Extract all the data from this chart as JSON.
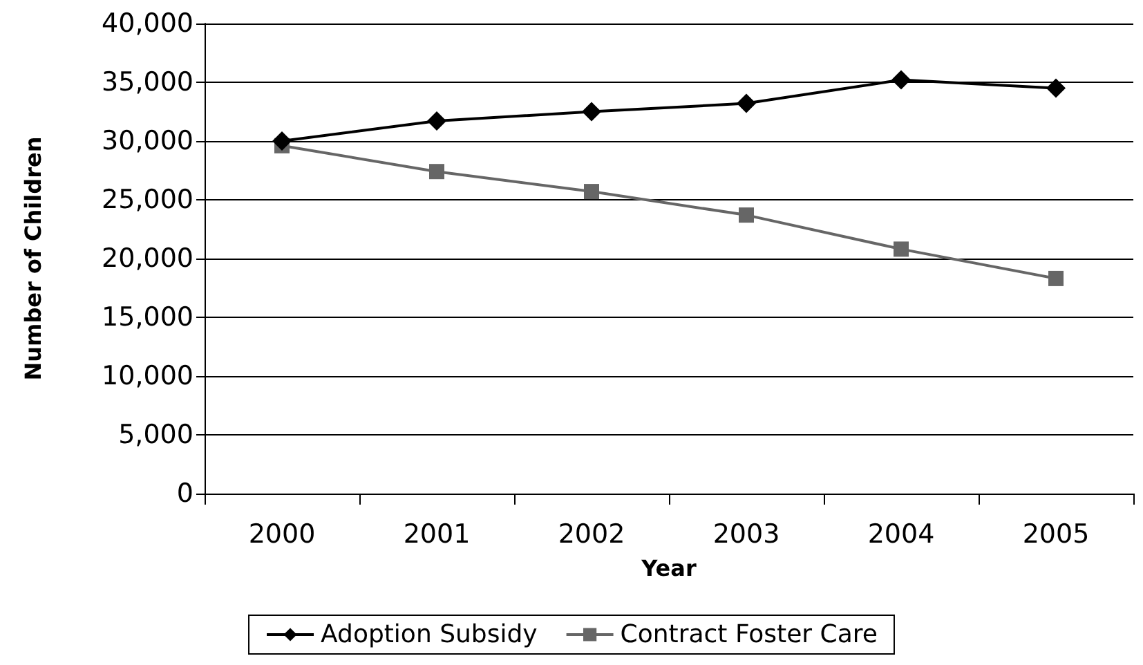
{
  "chart_data": {
    "type": "line",
    "xlabel": "Year",
    "ylabel": "Number of Children",
    "categories": [
      "2000",
      "2001",
      "2002",
      "2003",
      "2004",
      "2005"
    ],
    "series": [
      {
        "name": "Adoption Subsidy",
        "color": "#000000",
        "marker": "diamond",
        "values": [
          30000,
          31700,
          32500,
          33200,
          35200,
          34500
        ]
      },
      {
        "name": "Contract Foster Care",
        "color": "#666666",
        "marker": "square",
        "values": [
          29600,
          27400,
          25700,
          23700,
          20800,
          18300
        ]
      }
    ],
    "ylim": [
      0,
      40000
    ],
    "yticks": [
      {
        "value": 0,
        "label": "0"
      },
      {
        "value": 5000,
        "label": "5,000"
      },
      {
        "value": 10000,
        "label": "10,000"
      },
      {
        "value": 15000,
        "label": "15,000"
      },
      {
        "value": 20000,
        "label": "20,000"
      },
      {
        "value": 25000,
        "label": "25,000"
      },
      {
        "value": 30000,
        "label": "30,000"
      },
      {
        "value": 35000,
        "label": "35,000"
      },
      {
        "value": 40000,
        "label": "40,000"
      }
    ],
    "grid": "y",
    "legend": "bottom"
  }
}
